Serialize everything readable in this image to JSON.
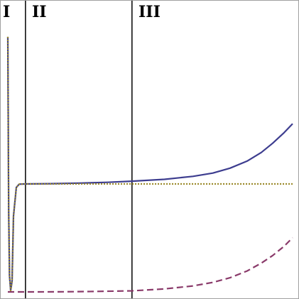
{
  "chart_data": {
    "type": "line",
    "title": "",
    "xlabel": "",
    "ylabel": "",
    "xlim": [
      0,
      100
    ],
    "ylim": [
      0,
      100
    ],
    "grid": false,
    "legend": "none",
    "regions": [
      {
        "label": "I",
        "x_start": 0,
        "x_end": 6.2
      },
      {
        "label": "II",
        "x_start": 6.2,
        "x_end": 43.6
      },
      {
        "label": "III",
        "x_start": 43.6,
        "x_end": 100
      }
    ],
    "boundaries_x": [
      6.2,
      43.6
    ],
    "series": [
      {
        "color": "#3d3d8f",
        "style": "solid",
        "x": [
          0,
          0.3,
          0.6,
          1,
          1.5,
          2,
          3,
          4,
          6.2,
          15,
          25,
          35,
          43.6,
          55,
          65,
          72,
          78,
          84,
          89,
          93,
          97,
          100
        ],
        "y": [
          94,
          30,
          6,
          0.5,
          4,
          28,
          38.5,
          39.7,
          39.8,
          39.9,
          40.1,
          40.4,
          40.8,
          41.5,
          42.6,
          43.8,
          45.6,
          48.2,
          51.4,
          54.8,
          58.7,
          62
        ]
      },
      {
        "color": "#9a8a2a",
        "style": "dotted",
        "x": [
          0,
          0.3,
          0.6,
          1,
          1.5,
          2,
          3,
          4,
          6.2,
          25,
          50,
          75,
          100
        ],
        "y": [
          94,
          30,
          6,
          0.5,
          4,
          28,
          38.5,
          39.7,
          39.8,
          39.8,
          39.8,
          39.8,
          39.8
        ]
      },
      {
        "color": "#8a3a6a",
        "style": "dashed",
        "x": [
          0,
          10,
          20,
          30,
          43.6,
          55,
          65,
          72,
          78,
          84,
          89,
          93,
          97,
          100
        ],
        "y": [
          0,
          0,
          0.05,
          0.15,
          0.4,
          1.1,
          2.2,
          3.5,
          5.2,
          7.7,
          10.6,
          13.4,
          16.8,
          20
        ]
      }
    ]
  }
}
